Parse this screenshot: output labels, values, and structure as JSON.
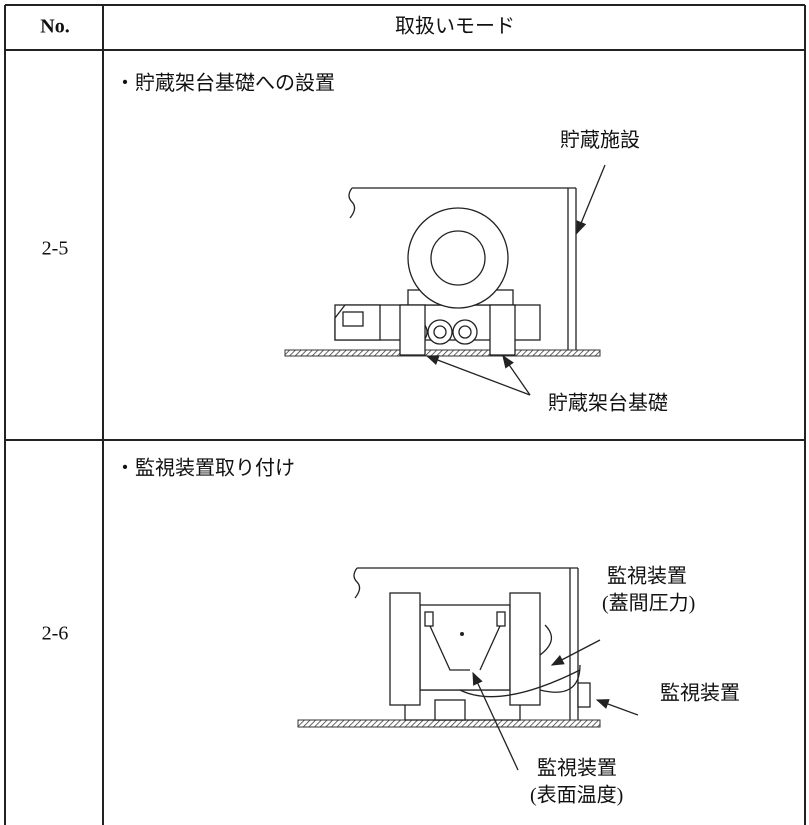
{
  "header": {
    "no": "No.",
    "mode": "取扱いモード"
  },
  "rows": [
    {
      "no": "2-5",
      "title": "・貯蔵架台基礎への設置",
      "labels": {
        "facility": "貯蔵施設",
        "foundation": "貯蔵架台基礎"
      }
    },
    {
      "no": "2-6",
      "title": "・監視装置取り付け",
      "labels": {
        "lid_device": "監視装置",
        "lid_note": "(蓋間圧力)",
        "device": "監視装置",
        "surface_device": "監視装置",
        "surface_note": "(表面温度)"
      }
    }
  ]
}
